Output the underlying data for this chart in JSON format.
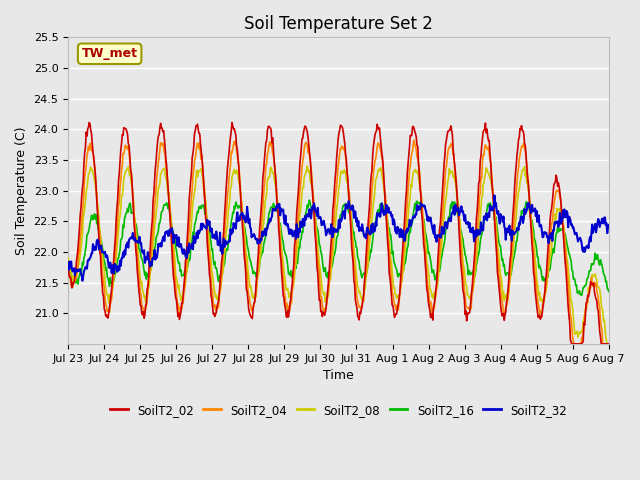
{
  "title": "Soil Temperature Set 2",
  "xlabel": "Time",
  "ylabel": "Soil Temperature (C)",
  "ylim": [
    20.5,
    25.5
  ],
  "yticks": [
    21.0,
    21.5,
    22.0,
    22.5,
    23.0,
    23.5,
    24.0,
    24.5,
    25.0,
    25.5
  ],
  "annotation_label": "TW_met",
  "annotation_color": "#aa0000",
  "annotation_bg": "#ffffcc",
  "annotation_border": "#999900",
  "series_colors": [
    "#cc0000",
    "#ff8800",
    "#cccc00",
    "#00bb00",
    "#0000cc"
  ],
  "series_lw": [
    1.2,
    1.2,
    1.2,
    1.2,
    1.5
  ],
  "legend_labels": [
    "SoilT2_02",
    "SoilT2_04",
    "SoilT2_08",
    "SoilT2_16",
    "SoilT2_32"
  ],
  "background_color": "#e8e8e8",
  "grid_color": "#ffffff",
  "title_fontsize": 12,
  "axis_label_fontsize": 9,
  "tick_fontsize": 8
}
